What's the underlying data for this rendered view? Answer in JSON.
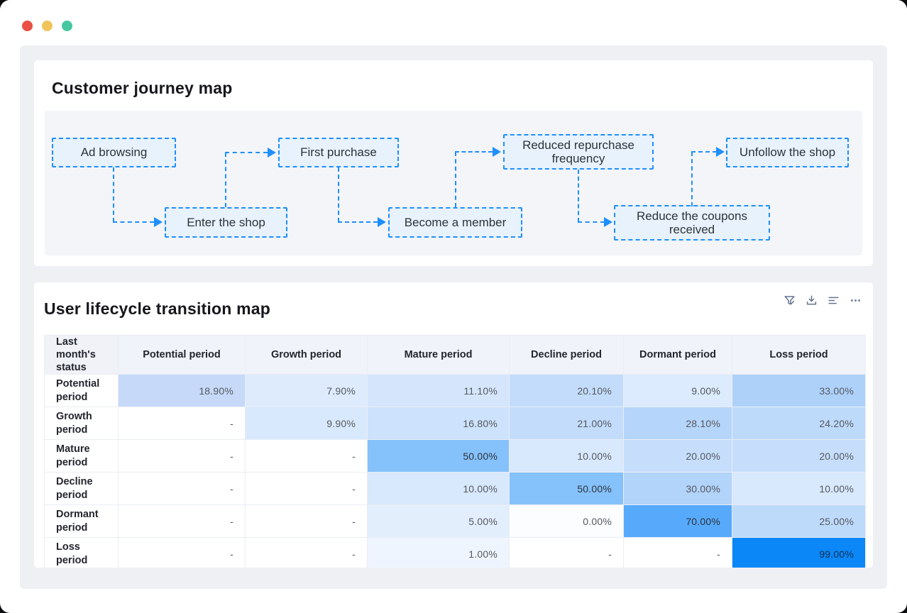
{
  "window": {
    "traffic_lights": [
      {
        "name": "close",
        "color": "#ea5044"
      },
      {
        "name": "minimize",
        "color": "#f0c45a"
      },
      {
        "name": "zoom",
        "color": "#46c7a1"
      }
    ]
  },
  "journey_card": {
    "title": "Customer journey map",
    "accent_color": "#1f8ffb",
    "nodes": [
      {
        "label": "Ad browsing"
      },
      {
        "label": "Enter the shop"
      },
      {
        "label": "First purchase"
      },
      {
        "label": "Become a member"
      },
      {
        "label": "Reduced repurchase frequency"
      },
      {
        "label": "Reduce the coupons received"
      },
      {
        "label": "Unfollow the shop"
      }
    ]
  },
  "lifecycle_card": {
    "title": "User lifecycle transition map",
    "toolbar_icons": [
      "filter-icon",
      "download-icon",
      "sort-lines-icon",
      "more-icon"
    ],
    "icon_color": "#64748f",
    "table": {
      "corner_header": "Last month's status",
      "columns": [
        "Potential period",
        "Growth period",
        "Mature period",
        "Decline period",
        "Dormant period",
        "Loss period"
      ],
      "rows": [
        {
          "label": "Potential period",
          "cells": [
            {
              "text": "18.90%",
              "bg": "#c6d9f9"
            },
            {
              "text": "7.90%",
              "bg": "#deebfd"
            },
            {
              "text": "11.10%",
              "bg": "#d5e6fc"
            },
            {
              "text": "20.10%",
              "bg": "#c3dcfb"
            },
            {
              "text": "9.00%",
              "bg": "#dcebfd"
            },
            {
              "text": "33.00%",
              "bg": "#aed1fa"
            }
          ]
        },
        {
          "label": "Growth period",
          "cells": [
            {
              "text": "-"
            },
            {
              "text": "9.90%",
              "bg": "#d9e9fd"
            },
            {
              "text": "16.80%",
              "bg": "#cde2fc"
            },
            {
              "text": "21.00%",
              "bg": "#c3dcfb"
            },
            {
              "text": "28.10%",
              "bg": "#b6d5fa"
            },
            {
              "text": "24.20%",
              "bg": "#bedafb"
            }
          ]
        },
        {
          "label": "Mature period",
          "cells": [
            {
              "text": "-"
            },
            {
              "text": "-"
            },
            {
              "text": "50.00%",
              "bg": "#85c1fb",
              "fg": "#2f3338"
            },
            {
              "text": "10.00%",
              "bg": "#d8e8fd"
            },
            {
              "text": "20.00%",
              "bg": "#c6defb"
            },
            {
              "text": "20.00%",
              "bg": "#c6defb"
            }
          ]
        },
        {
          "label": "Decline period",
          "cells": [
            {
              "text": "-"
            },
            {
              "text": "-"
            },
            {
              "text": "10.00%",
              "bg": "#d8e8fd"
            },
            {
              "text": "50.00%",
              "bg": "#85c1fb",
              "fg": "#2f3338"
            },
            {
              "text": "30.00%",
              "bg": "#b2d3fa"
            },
            {
              "text": "10.00%",
              "bg": "#d8e8fd"
            }
          ]
        },
        {
          "label": "Dormant period",
          "cells": [
            {
              "text": "-"
            },
            {
              "text": "-"
            },
            {
              "text": "5.00%",
              "bg": "#e3eefd"
            },
            {
              "text": "0.00%",
              "bg": "#fbfdff"
            },
            {
              "text": "70.00%",
              "bg": "#57aafb",
              "fg": "#2c3139"
            },
            {
              "text": "25.00%",
              "bg": "#bedafb"
            }
          ]
        },
        {
          "label": "Loss period",
          "cells": [
            {
              "text": "-"
            },
            {
              "text": "-"
            },
            {
              "text": "1.00%",
              "bg": "#eff5fe"
            },
            {
              "text": "-"
            },
            {
              "text": "-"
            },
            {
              "text": "99.00%",
              "bg": "#0b87f7",
              "fg": "#123152"
            }
          ]
        }
      ]
    }
  },
  "chart_data": {
    "type": "heatmap",
    "title": "User lifecycle transition map",
    "x_categories": [
      "Potential period",
      "Growth period",
      "Mature period",
      "Decline period",
      "Dormant period",
      "Loss period"
    ],
    "y_categories": [
      "Potential period",
      "Growth period",
      "Mature period",
      "Decline period",
      "Dormant period",
      "Loss period"
    ],
    "y_axis_label": "Last month's status",
    "values_percent": [
      [
        18.9,
        7.9,
        11.1,
        20.1,
        9.0,
        33.0
      ],
      [
        null,
        9.9,
        16.8,
        21.0,
        28.1,
        24.2
      ],
      [
        null,
        null,
        50.0,
        10.0,
        20.0,
        20.0
      ],
      [
        null,
        null,
        10.0,
        50.0,
        30.0,
        10.0
      ],
      [
        null,
        null,
        5.0,
        0.0,
        70.0,
        25.0
      ],
      [
        null,
        null,
        1.0,
        null,
        null,
        99.0
      ]
    ],
    "color_scale": {
      "low": "#ffffff",
      "high": "#0b87f7"
    }
  }
}
